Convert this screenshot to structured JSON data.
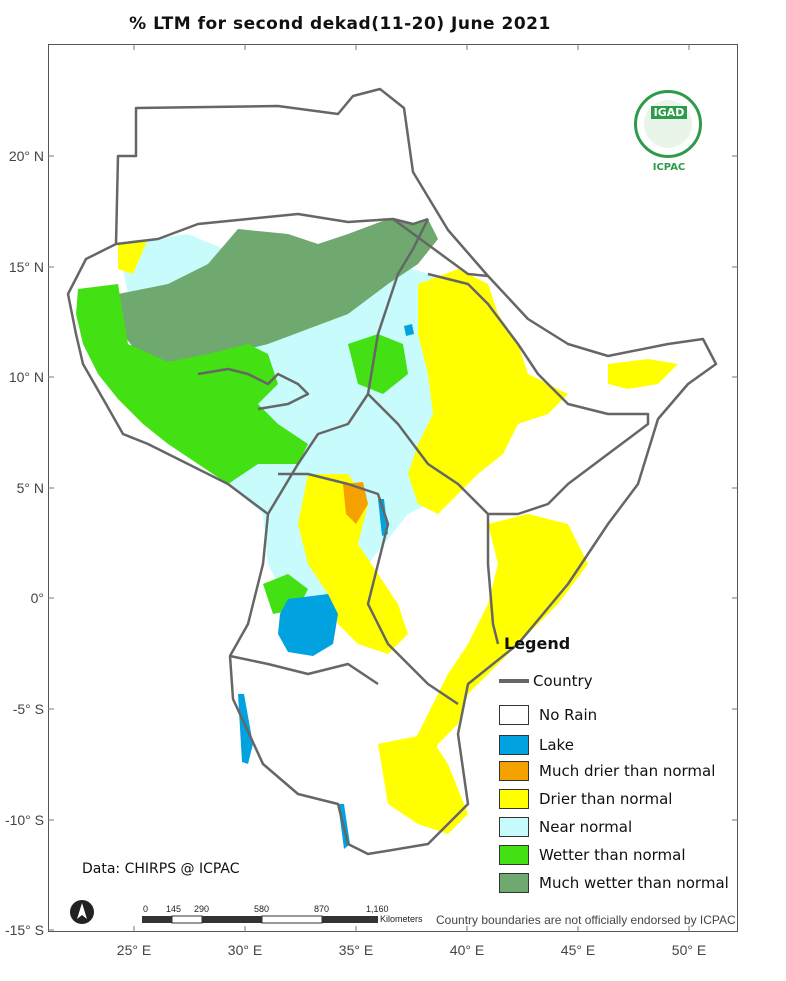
{
  "title": "% LTM for second dekad(11-20) June 2021",
  "lat_labels": [
    "20° N",
    "15° N",
    "10° N",
    "5° N",
    "0°",
    "-5° S",
    "-10° S",
    "-15° S"
  ],
  "lon_labels": [
    "25° E",
    "30° E",
    "35° E",
    "40° E",
    "45° E",
    "50° E"
  ],
  "legend": {
    "title": "Legend",
    "country_label": "Country",
    "items": [
      {
        "label": "No Rain",
        "color": "#ffffff"
      },
      {
        "label": "Lake",
        "color": "#00a2e0"
      },
      {
        "label": "Much drier than normal",
        "color": "#f5a100"
      },
      {
        "label": "Drier than normal",
        "color": "#ffff00"
      },
      {
        "label": "Near normal",
        "color": "#c8fcfc"
      },
      {
        "label": "Wetter than normal",
        "color": "#43e013"
      },
      {
        "label": "Much wetter than normal",
        "color": "#6fa96f"
      }
    ]
  },
  "source_text": "Data: CHIRPS @ ICPAC",
  "endorsement_text": "Country boundaries are not officially endorsed by ICPAC",
  "scale": {
    "ticks": [
      "0",
      "145",
      "290",
      "580",
      "870",
      "1,160"
    ],
    "unit": "Kilometers"
  },
  "logo": {
    "top": "IGAD",
    "bottom": "ICPAC"
  },
  "colors": {
    "border": "#666666",
    "no_rain": "#ffffff",
    "lake": "#00a2e0",
    "much_drier": "#f5a100",
    "drier": "#ffff00",
    "near_normal": "#c8fcfc",
    "wetter": "#43e013",
    "much_wetter": "#6fa96f"
  }
}
